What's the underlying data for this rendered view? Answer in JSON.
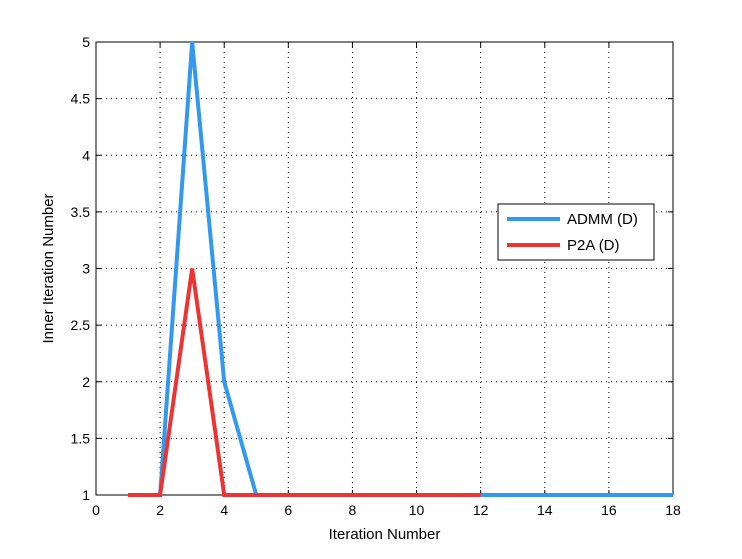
{
  "chart_data": {
    "type": "line",
    "title": "",
    "xlabel": "Iteration Number",
    "ylabel": "Inner Iteration Number",
    "xlim": [
      0,
      18
    ],
    "ylim": [
      1,
      5
    ],
    "xticks": [
      0,
      2,
      4,
      6,
      8,
      10,
      12,
      14,
      16,
      18
    ],
    "yticks": [
      1,
      1.5,
      2,
      2.5,
      3,
      3.5,
      4,
      4.5,
      5
    ],
    "xtick_labels": [
      "0",
      "2",
      "4",
      "6",
      "8",
      "10",
      "12",
      "14",
      "16",
      "18"
    ],
    "ytick_labels": [
      "1",
      "1.5",
      "2",
      "2.5",
      "3",
      "3.5",
      "4",
      "4.5",
      "5"
    ],
    "grid": true,
    "grid_style": "dotted",
    "legend_position": "right",
    "series": [
      {
        "name": "ADMM (D)",
        "color": "#3399ee",
        "x": [
          1,
          2,
          3,
          4,
          5,
          6,
          7,
          8,
          9,
          10,
          11,
          12,
          13,
          14,
          15,
          16,
          17,
          18
        ],
        "y": [
          1,
          1,
          5,
          2,
          1,
          1,
          1,
          1,
          1,
          1,
          1,
          1,
          1,
          1,
          1,
          1,
          1,
          1
        ]
      },
      {
        "name": "P2A (D)",
        "color": "#ee3333",
        "x": [
          1,
          2,
          3,
          4,
          5,
          6,
          7,
          8,
          9,
          10,
          11,
          12
        ],
        "y": [
          1,
          1,
          3,
          1,
          1,
          1,
          1,
          1,
          1,
          1,
          1,
          1
        ]
      }
    ]
  }
}
